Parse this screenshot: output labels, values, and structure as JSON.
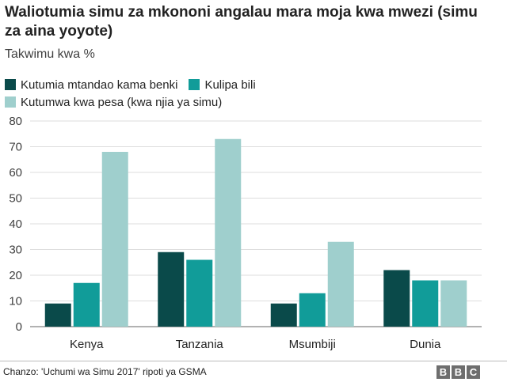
{
  "chart_data": {
    "type": "bar",
    "title": "Waliotumia simu za mkononi angalau mara moja kwa mwezi (simu za aina yoyote)",
    "subtitle": "Takwimu kwa %",
    "categories": [
      "Kenya",
      "Tanzania",
      "Msumbiji",
      "Dunia"
    ],
    "series": [
      {
        "name": "Kutumia mtandao kama benki",
        "color": "#0a4a4a",
        "values": [
          9,
          29,
          9,
          22
        ]
      },
      {
        "name": "Kulipa bili",
        "color": "#119c99",
        "values": [
          17,
          26,
          13,
          18
        ]
      },
      {
        "name": "Kutumwa kwa pesa (kwa njia ya simu)",
        "color": "#9fcfcd",
        "values": [
          68,
          73,
          33,
          18
        ]
      }
    ],
    "ylim": [
      0,
      80
    ],
    "yticks": [
      0,
      10,
      20,
      30,
      40,
      50,
      60,
      70,
      80
    ],
    "grid": true,
    "legend_position": "top-left"
  },
  "footer": {
    "source": "Chanzo: 'Uchumi wa Simu 2017' ripoti ya GSMA",
    "logo_letters": [
      "B",
      "B",
      "C"
    ]
  }
}
